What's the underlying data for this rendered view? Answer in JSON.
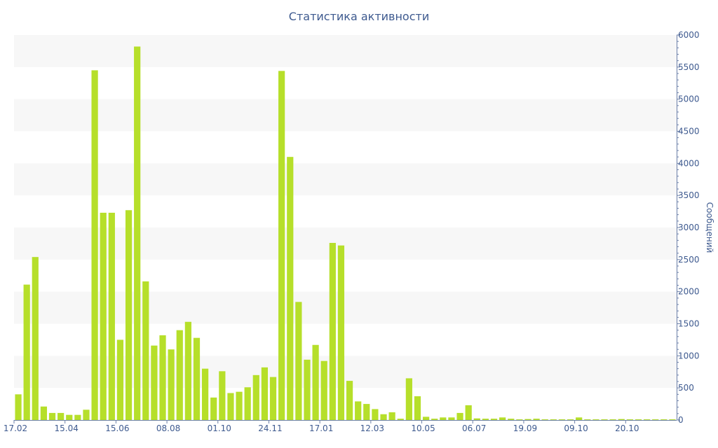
{
  "chart_data": {
    "type": "bar",
    "title": "Статистика активности",
    "xlabel": "",
    "ylabel": "Сообщений",
    "y_axis_side": "right",
    "ylim": [
      0,
      6000
    ],
    "y_ticks": [
      0,
      500,
      1000,
      1500,
      2000,
      2500,
      3000,
      3500,
      4000,
      4500,
      5000,
      5500,
      6000
    ],
    "x_tick_labels": [
      "17.02",
      "15.04",
      "15.06",
      "08.08",
      "01.10",
      "24.11",
      "17.01",
      "12.03",
      "10.05",
      "06.07",
      "19.09",
      "09.10",
      "20.10"
    ],
    "bar_color": "#b6df2a",
    "grid": "alternating horizontal bands",
    "values": [
      400,
      2110,
      2540,
      210,
      110,
      110,
      80,
      80,
      160,
      5450,
      3230,
      3230,
      1250,
      3270,
      5820,
      2160,
      1160,
      1320,
      1100,
      1400,
      1530,
      1280,
      800,
      350,
      760,
      420,
      440,
      510,
      700,
      820,
      670,
      5440,
      4100,
      1840,
      940,
      1170,
      920,
      2760,
      2720,
      610,
      290,
      250,
      170,
      90,
      120,
      20,
      650,
      370,
      50,
      20,
      40,
      40,
      110,
      230,
      25,
      20,
      20,
      40,
      20,
      10,
      15,
      20,
      10,
      10,
      10,
      10,
      40,
      10,
      10,
      10,
      10,
      15,
      10,
      10,
      10,
      10,
      10,
      10
    ]
  }
}
